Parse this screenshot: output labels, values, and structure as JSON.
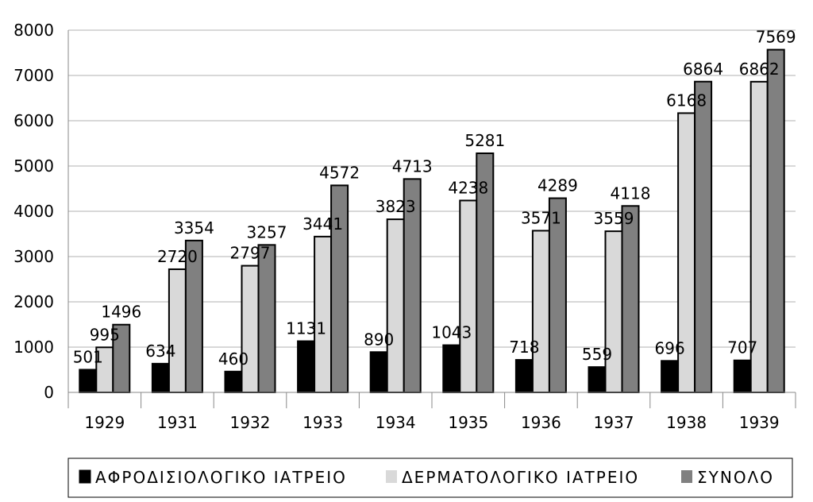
{
  "chart_data": {
    "type": "bar",
    "categories": [
      "1929",
      "1931",
      "1932",
      "1933",
      "1934",
      "1935",
      "1936",
      "1937",
      "1938",
      "1939"
    ],
    "series": [
      {
        "name": "ΑΦΡΟΔΙΣΙΟΛΟΓΙΚΟ ΙΑΤΡΕΙΟ",
        "color": "#000000",
        "values": [
          501,
          634,
          460,
          1131,
          890,
          1043,
          718,
          559,
          696,
          707
        ]
      },
      {
        "name": "ΔΕΡΜΑΤΟΛΟΓΙΚΟ ΙΑΤΡΕΙΟ",
        "color": "#d9d9d9",
        "values": [
          995,
          2720,
          2797,
          3441,
          3823,
          4238,
          3571,
          3559,
          6168,
          6862
        ]
      },
      {
        "name": "ΣΥΝΟΛΟ",
        "color": "#808080",
        "values": [
          1496,
          3354,
          3257,
          4572,
          4713,
          5281,
          4289,
          4118,
          6864,
          7569
        ]
      }
    ],
    "ylim": [
      0,
      8000
    ],
    "yticks": [
      0,
      1000,
      2000,
      3000,
      4000,
      5000,
      6000,
      7000,
      8000
    ],
    "grid": true,
    "legend_position": "bottom",
    "title": "",
    "xlabel": "",
    "ylabel": ""
  }
}
